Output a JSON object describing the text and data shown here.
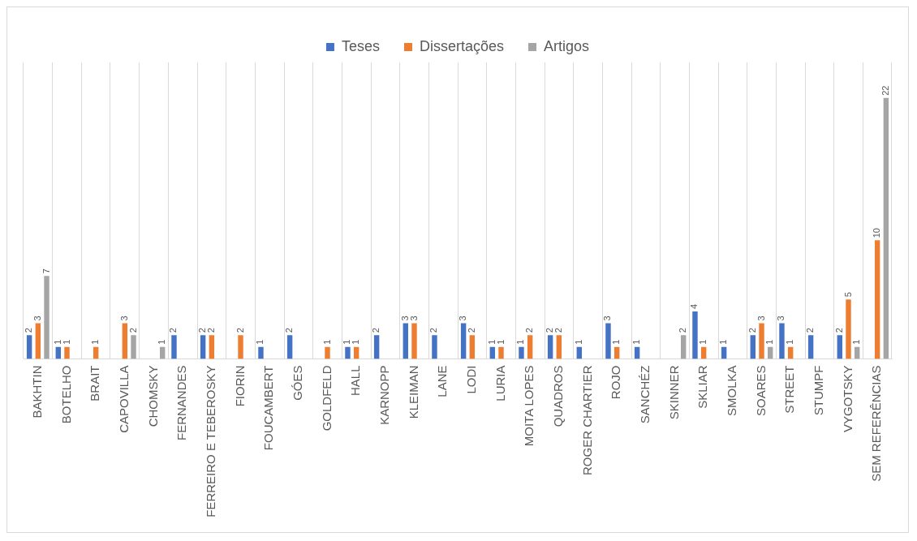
{
  "chart_data": {
    "type": "bar",
    "categories": [
      "BAKHTIN",
      "BOTELHO",
      "BRAIT",
      "CAPOVILLA",
      "CHOMSKY",
      "FERNANDES",
      "FERREIRO E TEBEROSKY",
      "FIORIN",
      "FOUCAMBERT",
      "GÓES",
      "GOLDFELD",
      "HALL",
      "KARNOPP",
      "KLEIMAN",
      "LANE",
      "LODI",
      "LURIA",
      "MOITA LOPES",
      "QUADROS",
      "ROGER CHARTIER",
      "ROJO",
      "SANCHÉZ",
      "SKINNER",
      "SKLIAR",
      "SMOLKA",
      "SOARES",
      "STREET",
      "STUMPF",
      "VYGOTSKY",
      "SEM REFERÊNCIAS"
    ],
    "series": [
      {
        "name": "Teses",
        "color": "#4472c4",
        "values": [
          2,
          1,
          null,
          null,
          null,
          2,
          2,
          null,
          1,
          2,
          null,
          1,
          2,
          3,
          2,
          3,
          1,
          1,
          2,
          1,
          3,
          1,
          null,
          4,
          1,
          2,
          3,
          2,
          2,
          null
        ]
      },
      {
        "name": "Dissertações",
        "color": "#ed7d31",
        "values": [
          3,
          1,
          1,
          3,
          null,
          null,
          2,
          2,
          null,
          null,
          1,
          1,
          null,
          3,
          null,
          2,
          1,
          2,
          2,
          null,
          1,
          null,
          null,
          1,
          null,
          3,
          1,
          null,
          5,
          10
        ]
      },
      {
        "name": "Artigos",
        "color": "#a5a5a5",
        "values": [
          7,
          null,
          null,
          2,
          1,
          null,
          null,
          null,
          null,
          null,
          null,
          null,
          null,
          null,
          null,
          null,
          null,
          null,
          null,
          null,
          null,
          null,
          2,
          null,
          null,
          1,
          null,
          null,
          1,
          22
        ]
      }
    ],
    "data_labels": true,
    "grid": "x",
    "legend": "top"
  }
}
